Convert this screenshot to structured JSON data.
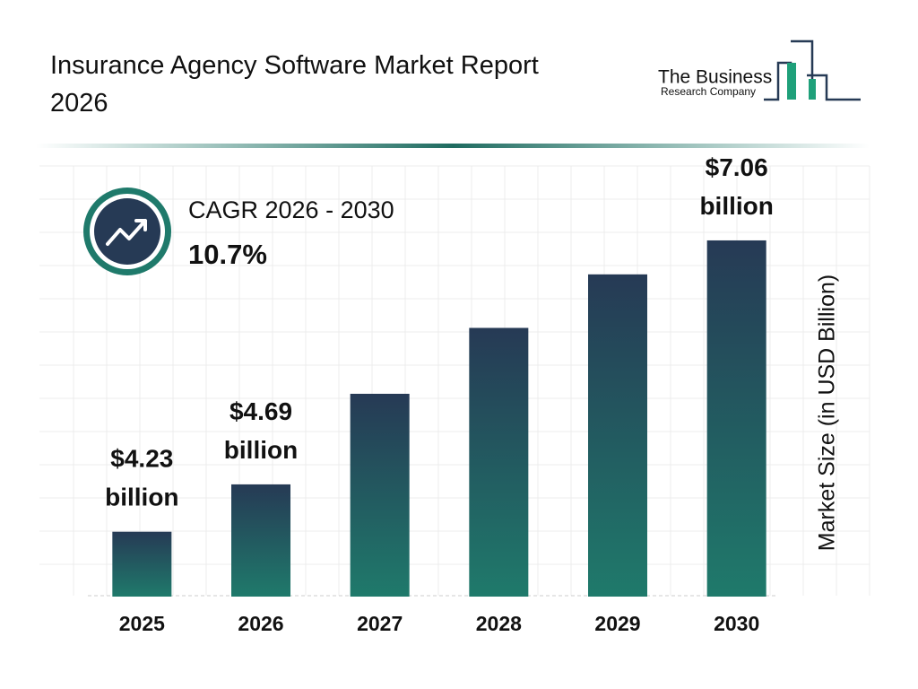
{
  "chart_data": {
    "type": "bar",
    "title": "Insurance Agency Software Market Report 2026",
    "logo": {
      "line1": "The Business",
      "line2": "Research Company"
    },
    "cagr_label": "CAGR 2026 - 2030",
    "cagr_value": "10.7%",
    "y_axis_label": "Market Size (in USD Billion)",
    "categories": [
      "2025",
      "2026",
      "2027",
      "2028",
      "2029",
      "2030"
    ],
    "values": [
      4.23,
      4.69,
      5.57,
      6.21,
      6.73,
      7.06
    ],
    "value_labels": [
      "$4.23 billion",
      "$4.69 billion",
      null,
      null,
      null,
      "$7.06 billion"
    ],
    "color": "#1f7a6b",
    "ylim": [
      3.6,
      7.6
    ]
  }
}
